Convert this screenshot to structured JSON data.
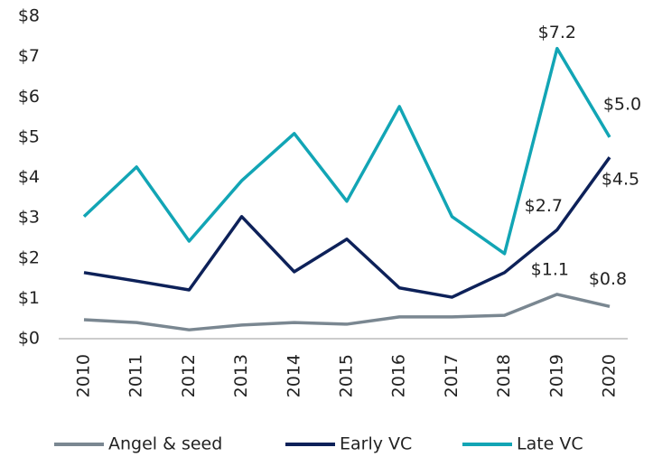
{
  "chart_data": {
    "type": "line",
    "categories": [
      "2010",
      "2011",
      "2012",
      "2013",
      "2014",
      "2015",
      "2016",
      "2017",
      "2018",
      "2019",
      "2020"
    ],
    "series": [
      {
        "name": "Angel & seed",
        "color": "#7a8791",
        "values": [
          0.47,
          0.4,
          0.22,
          0.34,
          0.4,
          0.36,
          0.54,
          0.54,
          0.58,
          1.1,
          0.8
        ],
        "value_labels": [
          null,
          null,
          null,
          null,
          null,
          null,
          null,
          null,
          null,
          "$1.1",
          "$0.8"
        ]
      },
      {
        "name": "Early VC",
        "color": "#0d2159",
        "values": [
          1.64,
          1.43,
          1.21,
          3.03,
          1.66,
          2.47,
          1.26,
          1.03,
          1.64,
          2.7,
          4.5
        ],
        "value_labels": [
          null,
          null,
          null,
          null,
          null,
          null,
          null,
          null,
          null,
          "$2.7",
          "$4.5"
        ]
      },
      {
        "name": "Late VC",
        "color": "#12a5b5",
        "values": [
          3.03,
          4.26,
          2.42,
          3.92,
          5.09,
          3.41,
          5.76,
          3.03,
          2.11,
          7.2,
          5.0
        ],
        "value_labels": [
          null,
          null,
          null,
          null,
          null,
          null,
          null,
          null,
          null,
          "$7.2",
          "$5.0"
        ]
      }
    ],
    "ylim": [
      0,
      8
    ],
    "yticks": [
      {
        "value": 0,
        "label": "$0"
      },
      {
        "value": 1,
        "label": "$1"
      },
      {
        "value": 2,
        "label": "$2"
      },
      {
        "value": 3,
        "label": "$3"
      },
      {
        "value": 4,
        "label": "$4"
      },
      {
        "value": 5,
        "label": "$5"
      },
      {
        "value": 6,
        "label": "$6"
      },
      {
        "value": 7,
        "label": "$7"
      },
      {
        "value": 8,
        "label": "$8"
      }
    ],
    "grid": false,
    "legend": "bottom"
  }
}
